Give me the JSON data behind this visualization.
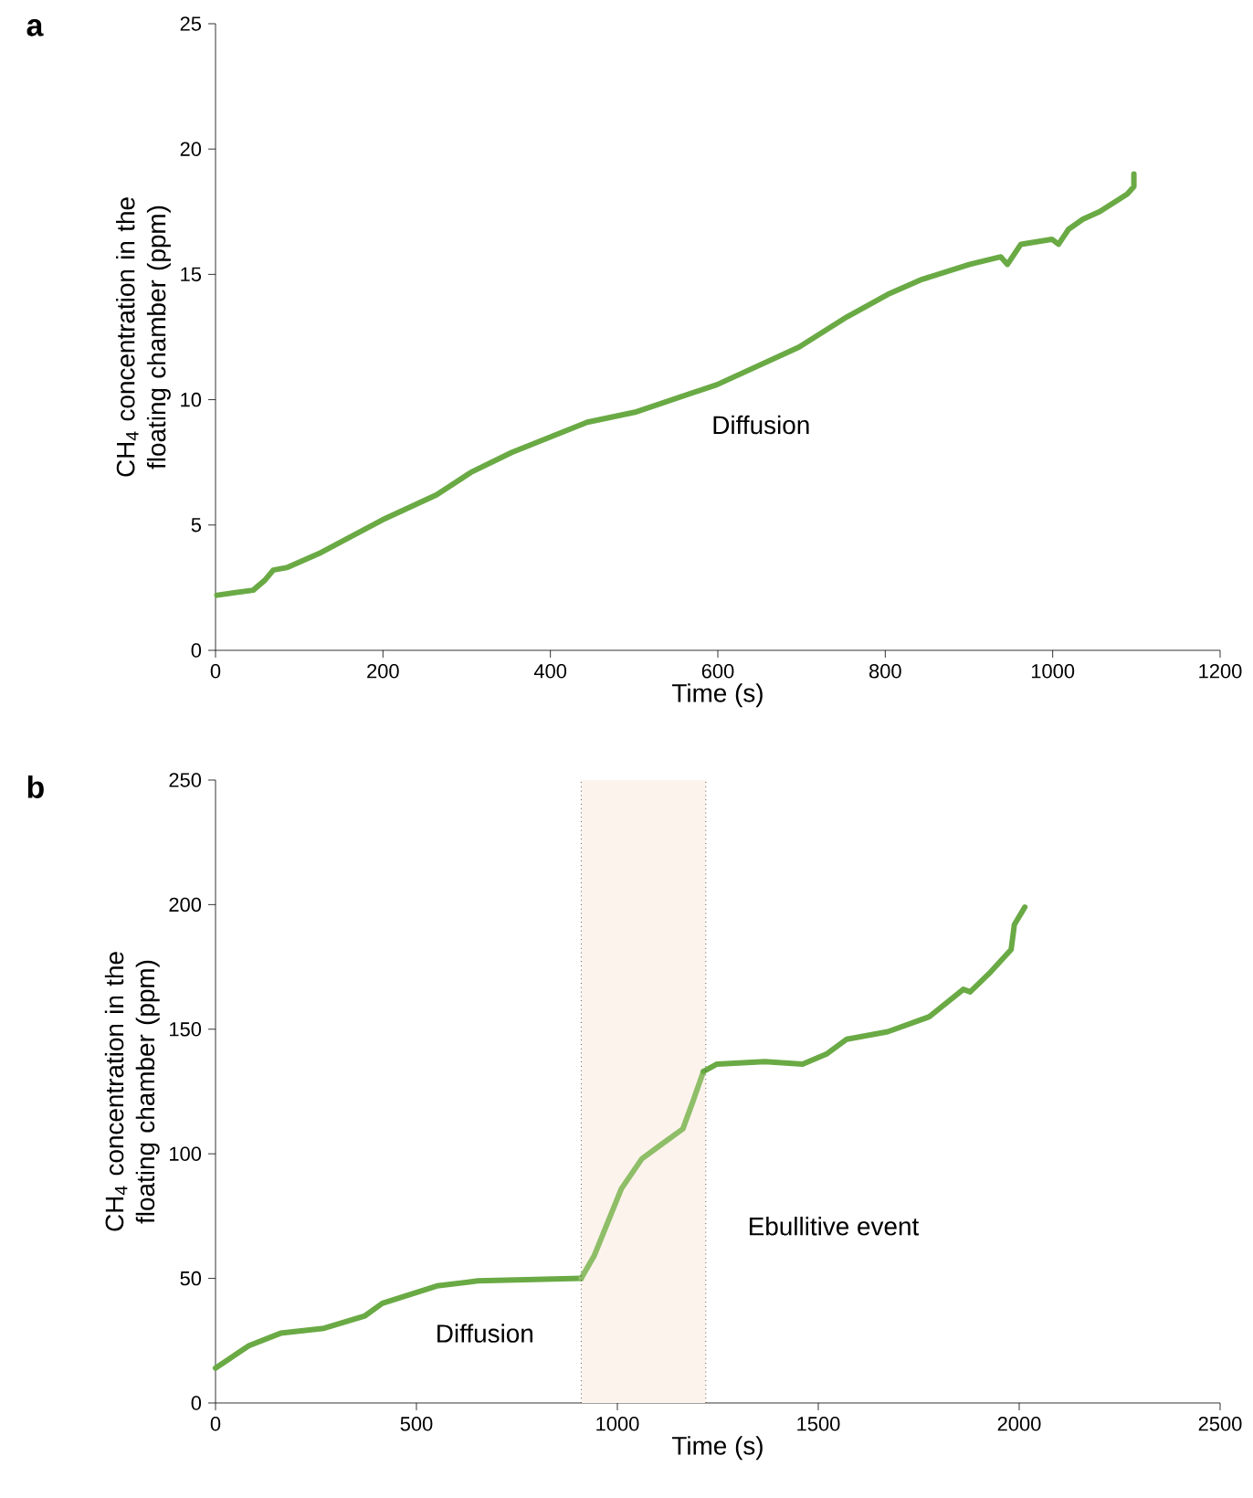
{
  "chart_data": [
    {
      "type": "line",
      "title": "a",
      "xlabel": "Time (s)",
      "ylabel": "CH$_{4}$ concentration in the floating chamber (ppm)",
      "xlim": [
        0,
        1200
      ],
      "ylim": [
        0,
        25
      ],
      "xticks": [
        0,
        200,
        400,
        600,
        800,
        1000,
        1200
      ],
      "yticks": [
        0,
        5,
        10,
        15,
        20,
        25
      ],
      "series": [
        {
          "color": "#6aaa45",
          "x": [
            1.6,
            45,
            59,
            69,
            85,
            126,
            199,
            264,
            305,
            354,
            444,
            501,
            599,
            697,
            754,
            803,
            844,
            901,
            938,
            946,
            962,
            999,
            1007,
            1019,
            1036,
            1056,
            1089,
            1097,
            1097
          ],
          "values": [
            2.2,
            2.4,
            2.8,
            3.2,
            3.3,
            3.9,
            5.2,
            6.2,
            7.1,
            7.9,
            9.1,
            9.5,
            10.6,
            12.1,
            13.3,
            14.2,
            14.8,
            15.4,
            15.7,
            15.4,
            16.2,
            16.4,
            16.2,
            16.8,
            17.2,
            17.5,
            18.2,
            18.5,
            19.0
          ]
        }
      ],
      "annotations": [
        "Diffusion"
      ]
    },
    {
      "type": "line",
      "title": "b",
      "xlabel": "Time (s)",
      "ylabel": "CH$_{4}$ concentration in the floating chamber (ppm)",
      "xlim": [
        0,
        2500
      ],
      "ylim": [
        0,
        250
      ],
      "xticks": [
        0,
        500,
        1000,
        1500,
        2000,
        2500
      ],
      "yticks": [
        0,
        50,
        100,
        150,
        200,
        250
      ],
      "series": [
        {
          "color": "#6aaa45",
          "x": [
            0,
            83,
            162,
            270,
            372,
            415,
            551,
            653,
            910
          ],
          "values": [
            14,
            23,
            28,
            30,
            35,
            40,
            47,
            49,
            50
          ]
        },
        {
          "color": "#8fbe68",
          "x": [
            910,
            942,
            1010,
            1061,
            1103,
            1163,
            1188,
            1214
          ],
          "values": [
            50,
            59,
            86,
            98,
            103,
            110,
            121,
            133
          ]
        },
        {
          "color": "#6aaa45",
          "x": [
            1214,
            1248,
            1367,
            1461,
            1520,
            1571,
            1673,
            1776,
            1861,
            1878,
            1929,
            1980,
            1988,
            2014
          ],
          "values": [
            133,
            136,
            137,
            136,
            140,
            146,
            149,
            155,
            166,
            165,
            173,
            182,
            192,
            199
          ]
        }
      ],
      "bands": [
        {
          "axis": "x",
          "from": 910,
          "to": 1220,
          "color": "#fcf3ec"
        }
      ],
      "ref_lines": [
        {
          "axis": "x",
          "value": 910,
          "line_style": "dotted"
        },
        {
          "axis": "x",
          "value": 1220,
          "line_style": "dotted"
        }
      ],
      "annotations": [
        "Diffusion",
        "Ebullitive event"
      ]
    }
  ]
}
